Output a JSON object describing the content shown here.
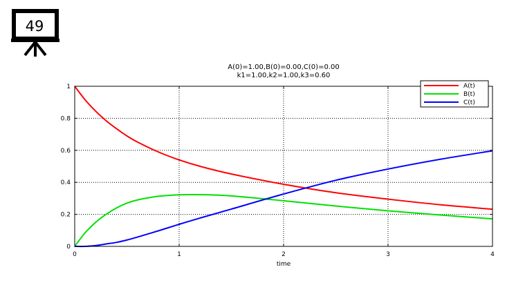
{
  "slide": {
    "number": "49"
  },
  "chart_data": {
    "type": "line",
    "title": [
      "A(0)=1.00,B(0)=0.00,C(0)=0.00",
      "k1=1.00,k2=1.00,k3=0.60"
    ],
    "xlabel": "time",
    "ylabel": "",
    "xlim": [
      0,
      4
    ],
    "ylim": [
      0,
      1
    ],
    "xticks": [
      "0",
      "1",
      "2",
      "3",
      "4"
    ],
    "yticks": [
      "0",
      "0.2",
      "0.4",
      "0.6",
      "0.8",
      "1"
    ],
    "grid": true,
    "legend_position": "top-right",
    "x": [
      0,
      0.1,
      0.2,
      0.3,
      0.4,
      0.5,
      0.6,
      0.8,
      1.0,
      1.2,
      1.5,
      2.0,
      2.5,
      3.0,
      3.5,
      4.0
    ],
    "series": [
      {
        "name": "A(t)",
        "color": "#ff0000",
        "values": [
          1.0,
          0.915,
          0.845,
          0.785,
          0.735,
          0.69,
          0.652,
          0.59,
          0.54,
          0.5,
          0.452,
          0.388,
          0.335,
          0.295,
          0.26,
          0.232
        ]
      },
      {
        "name": "B(t)",
        "color": "#00e000",
        "values": [
          0.0,
          0.085,
          0.15,
          0.2,
          0.24,
          0.27,
          0.29,
          0.313,
          0.322,
          0.323,
          0.315,
          0.285,
          0.252,
          0.222,
          0.196,
          0.172
        ]
      },
      {
        "name": "C(t)",
        "color": "#0000ff",
        "values": [
          0.0,
          0.0,
          0.005,
          0.015,
          0.025,
          0.04,
          0.058,
          0.097,
          0.138,
          0.177,
          0.233,
          0.327,
          0.413,
          0.483,
          0.544,
          0.597
        ]
      }
    ]
  }
}
